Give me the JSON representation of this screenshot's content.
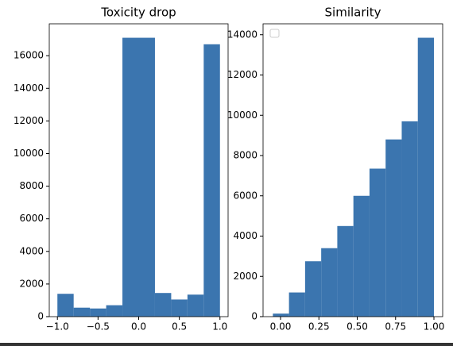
{
  "chart_data": [
    {
      "type": "histogram",
      "title": "Toxicity drop",
      "color": "#3b75af",
      "bins": [
        -1.0,
        -0.8,
        -0.6,
        -0.4,
        -0.2,
        0.0,
        0.2,
        0.4,
        0.6,
        0.8,
        1.0
      ],
      "values": [
        1400,
        550,
        500,
        700,
        17100,
        17100,
        1450,
        1050,
        1350,
        16700
      ],
      "xlim": [
        -1.1,
        1.1
      ],
      "xticks": [
        {
          "value": -1.0,
          "label": "−1.0"
        },
        {
          "value": -0.5,
          "label": "−0.5"
        },
        {
          "value": 0.0,
          "label": "0.0"
        },
        {
          "value": 0.5,
          "label": "0.5"
        },
        {
          "value": 1.0,
          "label": "1.0"
        }
      ],
      "ylim": [
        0,
        17955
      ],
      "yticks": [
        0,
        2000,
        4000,
        6000,
        8000,
        10000,
        12000,
        14000,
        16000
      ]
    },
    {
      "type": "histogram",
      "title": "Similarity",
      "color": "#3b75af",
      "bins": [
        -0.05,
        0.055,
        0.16,
        0.265,
        0.37,
        0.475,
        0.58,
        0.685,
        0.79,
        0.895,
        1.0
      ],
      "values": [
        150,
        1200,
        2750,
        3400,
        4500,
        6000,
        7350,
        8800,
        9700,
        13850
      ],
      "xlim": [
        -0.114,
        1.057
      ],
      "xticks": [
        {
          "value": 0.0,
          "label": "0.00"
        },
        {
          "value": 0.25,
          "label": "0.25"
        },
        {
          "value": 0.5,
          "label": "0.50"
        },
        {
          "value": 0.75,
          "label": "0.75"
        },
        {
          "value": 1.0,
          "label": "1.00"
        }
      ],
      "ylim": [
        0,
        14542
      ],
      "yticks": [
        0,
        2000,
        4000,
        6000,
        8000,
        10000,
        12000,
        14000
      ]
    }
  ]
}
